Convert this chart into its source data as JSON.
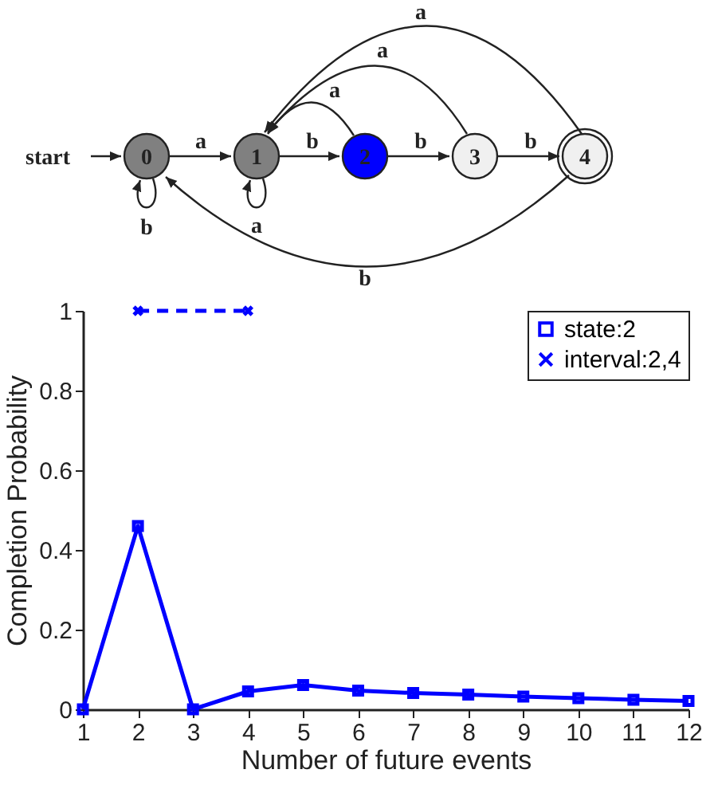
{
  "chart_data": {
    "type": "line",
    "xlabel": "Number of future events",
    "ylabel": "Completion Probability",
    "annotations": [
      "start",
      "0",
      "1",
      "2",
      "3",
      "4",
      "a",
      "b",
      "b",
      "b",
      "b",
      "a",
      "a",
      "a",
      "a",
      "b"
    ],
    "series": [
      {
        "name": "state:2",
        "color": "#0000ff",
        "marker": "square",
        "line_style": "solid",
        "x": [
          1,
          2,
          3,
          4,
          5,
          6,
          7,
          8,
          9,
          10,
          11,
          12
        ],
        "values": [
          0,
          0.46,
          0,
          0.045,
          0.061,
          0.047,
          0.041,
          0.037,
          0.032,
          0.028,
          0.024,
          0.021
        ]
      },
      {
        "name": "interval:2,4",
        "color": "#0000ff",
        "marker": "cross",
        "line_style": "dashed",
        "x": [
          2,
          4
        ],
        "values": [
          1,
          1
        ]
      }
    ],
    "xlim": [
      1,
      12
    ],
    "xticks": [
      1,
      2,
      3,
      4,
      5,
      6,
      7,
      8,
      9,
      10,
      11,
      12
    ],
    "ylim": [
      0,
      1
    ],
    "yticks": [
      0,
      0.2,
      0.4,
      0.6,
      0.8,
      1
    ],
    "grid": false,
    "legend": "top right"
  }
}
